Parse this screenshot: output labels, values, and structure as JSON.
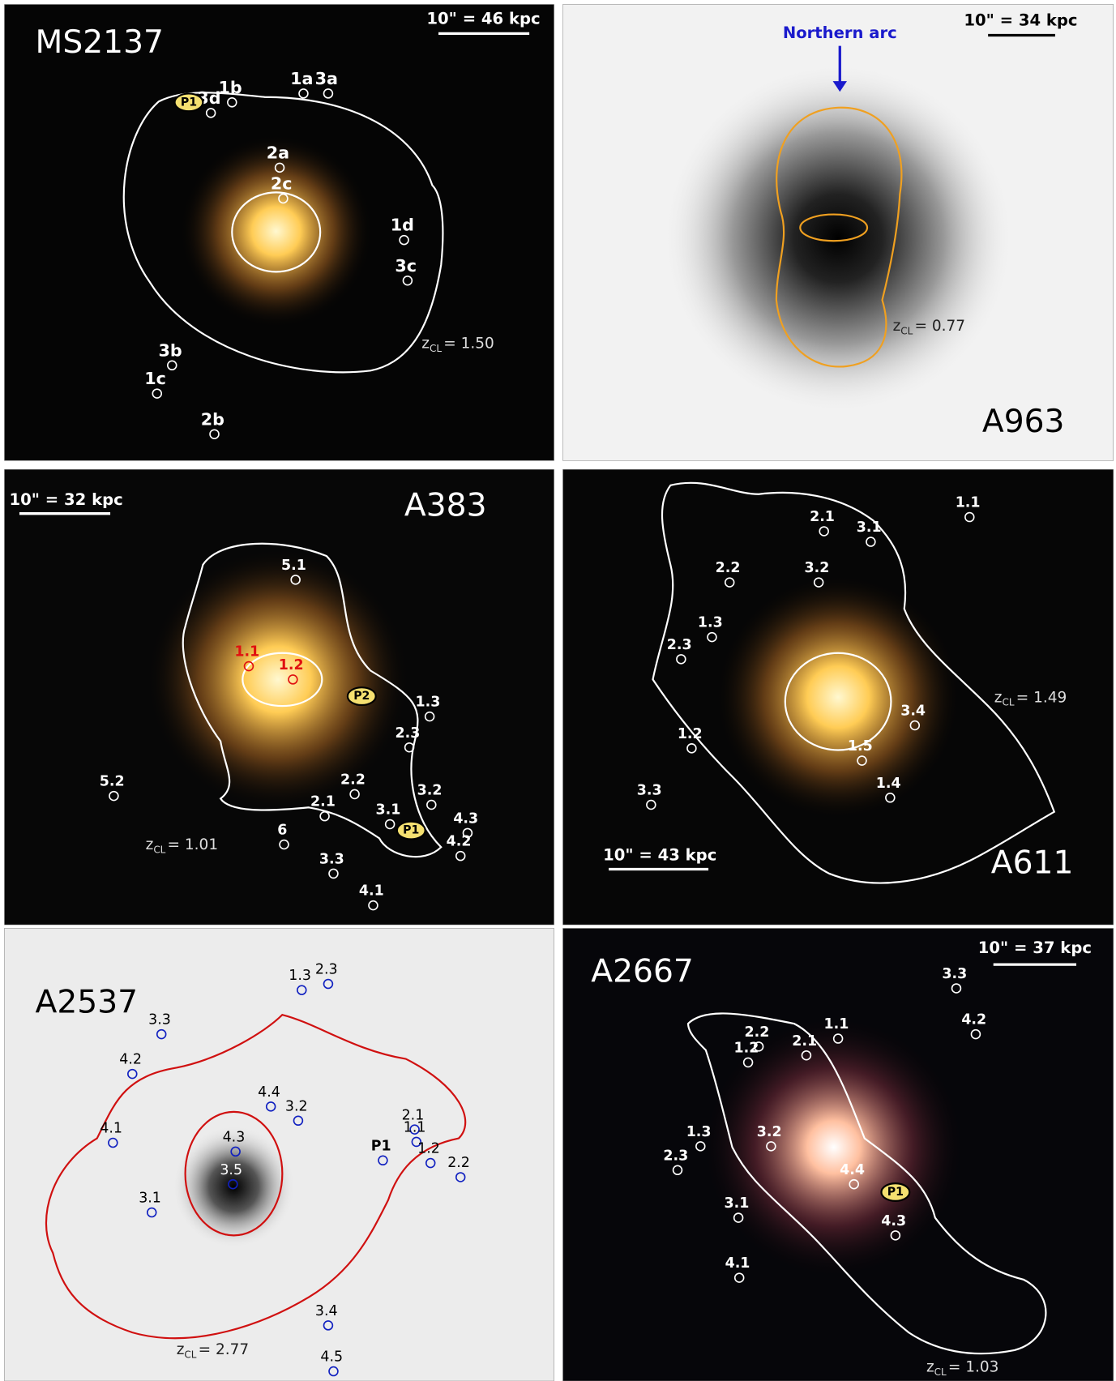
{
  "panels": [
    {
      "cluster": "MS2137",
      "scale_bar": "10\" = 46 kpc",
      "z": {
        "symbol": "z",
        "sub": "CL",
        "value": "= 1.50"
      },
      "images": [
        "1a",
        "3a",
        "3d",
        "1b",
        "P1",
        "2a",
        "2c",
        "1d",
        "3c",
        "3b",
        "1c",
        "2b"
      ]
    },
    {
      "cluster": "A963",
      "scale_bar": "10\" = 34 kpc",
      "z": {
        "symbol": "z",
        "sub": "CL",
        "value": "= 0.77"
      },
      "annotation": "Northern arc",
      "images": []
    },
    {
      "cluster": "A383",
      "scale_bar": "10\" = 32 kpc",
      "z": {
        "symbol": "z",
        "sub": "CL",
        "value": "= 1.01"
      },
      "images": [
        "5.1",
        "1.1",
        "1.2",
        "P2",
        "1.3",
        "2.3",
        "2.2",
        "2.1",
        "3.2",
        "3.1",
        "4.3",
        "P1",
        "4.2",
        "6",
        "5.2",
        "3.3",
        "4.1"
      ]
    },
    {
      "cluster": "A611",
      "scale_bar": "10\" = 43 kpc",
      "z": {
        "symbol": "z",
        "sub": "CL",
        "value": "= 1.49"
      },
      "images": [
        "2.1",
        "1.1",
        "3.1",
        "3.2",
        "2.2",
        "1.3",
        "2.3",
        "1.2",
        "3.4",
        "1.5",
        "1.4",
        "3.3"
      ]
    },
    {
      "cluster": "A2537",
      "z": {
        "symbol": "z",
        "sub": "CL",
        "value": "= 2.77"
      },
      "images": [
        "1.3",
        "2.3",
        "3.3",
        "4.2",
        "4.4",
        "3.2",
        "2.1",
        "1.1",
        "P1",
        "1.2",
        "2.2",
        "4.1",
        "4.3",
        "3.5",
        "3.1",
        "3.4",
        "4.5"
      ]
    },
    {
      "cluster": "A2667",
      "scale_bar": "10\" = 37 kpc",
      "z": {
        "symbol": "z",
        "sub": "CL",
        "value": "= 1.03"
      },
      "images": [
        "3.3",
        "4.2",
        "1.1",
        "2.2",
        "2.1",
        "1.2",
        "1.3",
        "3.2",
        "2.3",
        "4.4",
        "P1",
        "4.3",
        "3.1",
        "4.1"
      ]
    }
  ]
}
